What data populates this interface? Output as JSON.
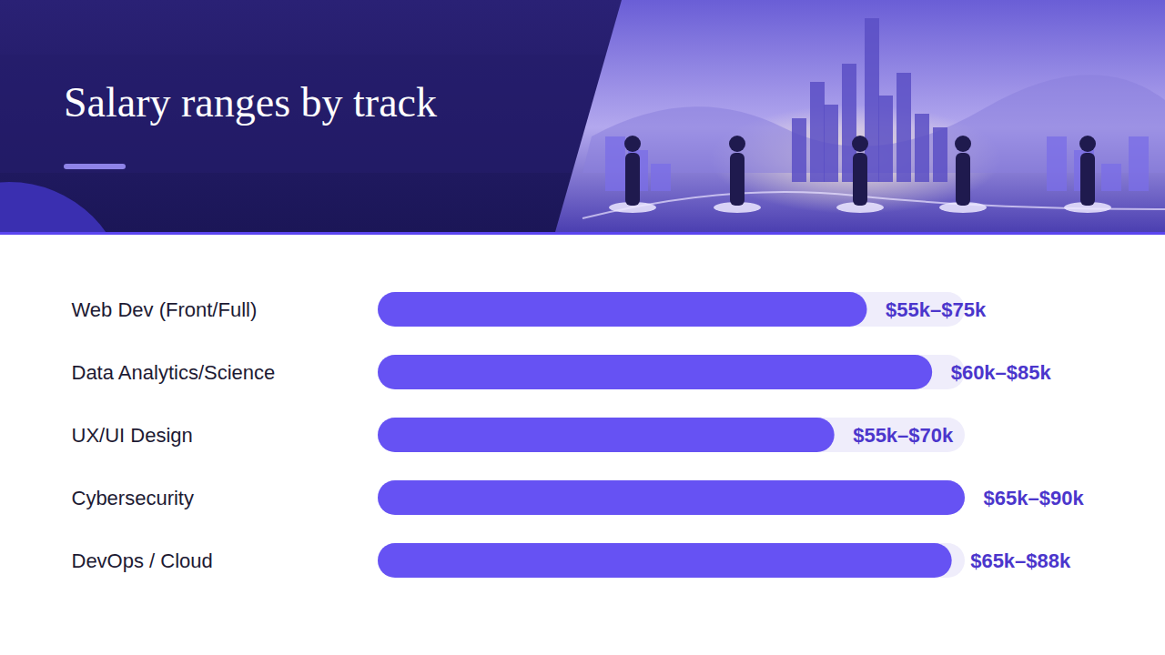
{
  "chart_data": {
    "type": "bar",
    "title": "Salary ranges by track",
    "orientation": "horizontal",
    "categories": [
      "Web Dev (Front/Full)",
      "Data Analytics/Science",
      "UX/UI Design",
      "Cybersecurity",
      "DevOps / Cloud"
    ],
    "values": [
      75,
      85,
      70,
      90,
      88
    ],
    "value_labels": [
      "$55k–$75k",
      "$60k–$85k",
      "$55k–$70k",
      "$65k–$90k",
      "$65k–$88k"
    ],
    "data_labels": true,
    "color": "#6652f3",
    "xlim": [
      0,
      90
    ],
    "tick_labels": false,
    "grid": false
  }
}
